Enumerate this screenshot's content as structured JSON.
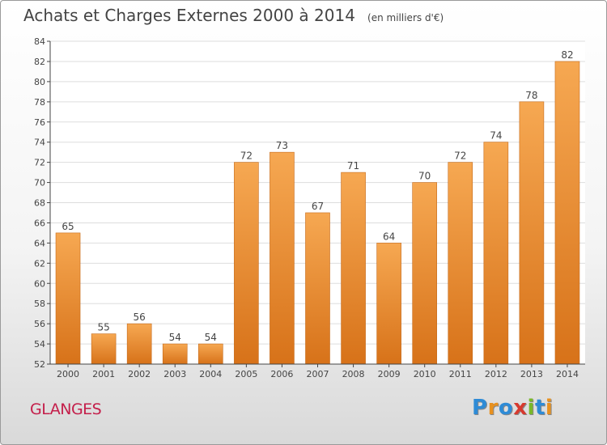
{
  "title": "Achats et Charges Externes 2000 à 2014",
  "subtitle": "(en milliers d'€)",
  "commune": "GLANGES",
  "logo": {
    "text": "Proxiti",
    "letter_colors": [
      "#2e8bd6",
      "#e8911f",
      "#2e8bd6",
      "#d63a2f",
      "#79b829",
      "#2e8bd6",
      "#e8911f"
    ]
  },
  "colors": {
    "bar_top": "#f6a852",
    "bar_bottom": "#d77219",
    "bar_edge": "#c56a1a",
    "grid": "#dddddd",
    "axis": "#444444",
    "text": "#444444"
  },
  "chart_data": {
    "type": "bar",
    "categories": [
      "2000",
      "2001",
      "2002",
      "2003",
      "2004",
      "2005",
      "2006",
      "2007",
      "2008",
      "2009",
      "2010",
      "2011",
      "2012",
      "2013",
      "2014"
    ],
    "values": [
      65,
      55,
      56,
      54,
      54,
      72,
      73,
      67,
      71,
      64,
      70,
      72,
      74,
      78,
      82
    ],
    "ylim": [
      52,
      84
    ],
    "yticks": [
      52,
      54,
      56,
      58,
      60,
      62,
      64,
      66,
      68,
      70,
      72,
      74,
      76,
      78,
      80,
      82,
      84
    ],
    "grid": true,
    "data_labels": true,
    "title": "Achats et Charges Externes 2000 à 2014",
    "xlabel": "",
    "ylabel": ""
  }
}
